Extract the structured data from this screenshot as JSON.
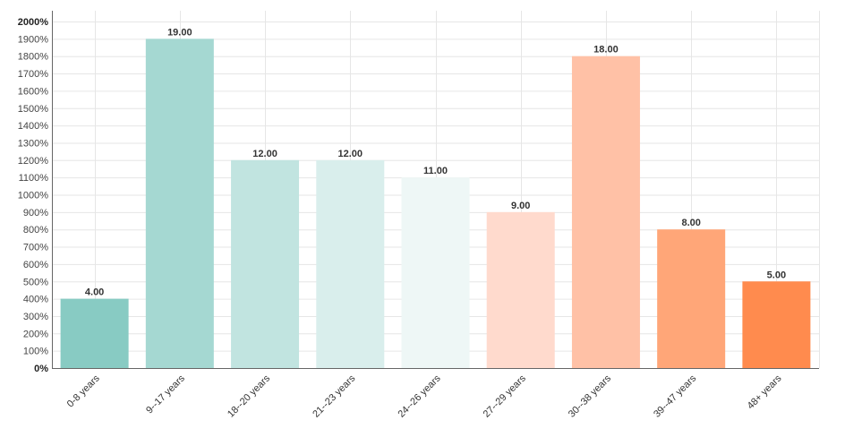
{
  "chart_data": {
    "type": "bar",
    "title": "",
    "xlabel": "",
    "ylabel": "",
    "categories": [
      "0-8 years",
      "9--17 years",
      "18--20 years",
      "21--23 years",
      "24--26 years",
      "27--29 years",
      "30--38 years",
      "39--47 years",
      "48+ years"
    ],
    "values": [
      4,
      19,
      12,
      12,
      11,
      9,
      18,
      8,
      5
    ],
    "value_labels": [
      "4.00",
      "19.00",
      "12.00",
      "12.00",
      "11.00",
      "9.00",
      "18.00",
      "8.00",
      "5.00"
    ],
    "colors": [
      "#88cbc3",
      "#a5d8d2",
      "#c1e4e0",
      "#d9eeec",
      "#eef7f6",
      "#ffdacd",
      "#ffc1a6",
      "#ffa678",
      "#ff8b4e"
    ],
    "ylim": [
      0,
      20
    ],
    "yticks": [
      0,
      1,
      2,
      3,
      4,
      5,
      6,
      7,
      8,
      9,
      10,
      11,
      12,
      13,
      14,
      15,
      16,
      17,
      18,
      19,
      20
    ],
    "ytick_labels": [
      "0%",
      "100%",
      "200%",
      "300%",
      "400%",
      "500%",
      "600%",
      "700%",
      "800%",
      "900%",
      "1000%",
      "1100%",
      "1200%",
      "1300%",
      "1400%",
      "1500%",
      "1600%",
      "1700%",
      "1800%",
      "1900%",
      "2000%"
    ],
    "grid": true,
    "legend": "none"
  }
}
